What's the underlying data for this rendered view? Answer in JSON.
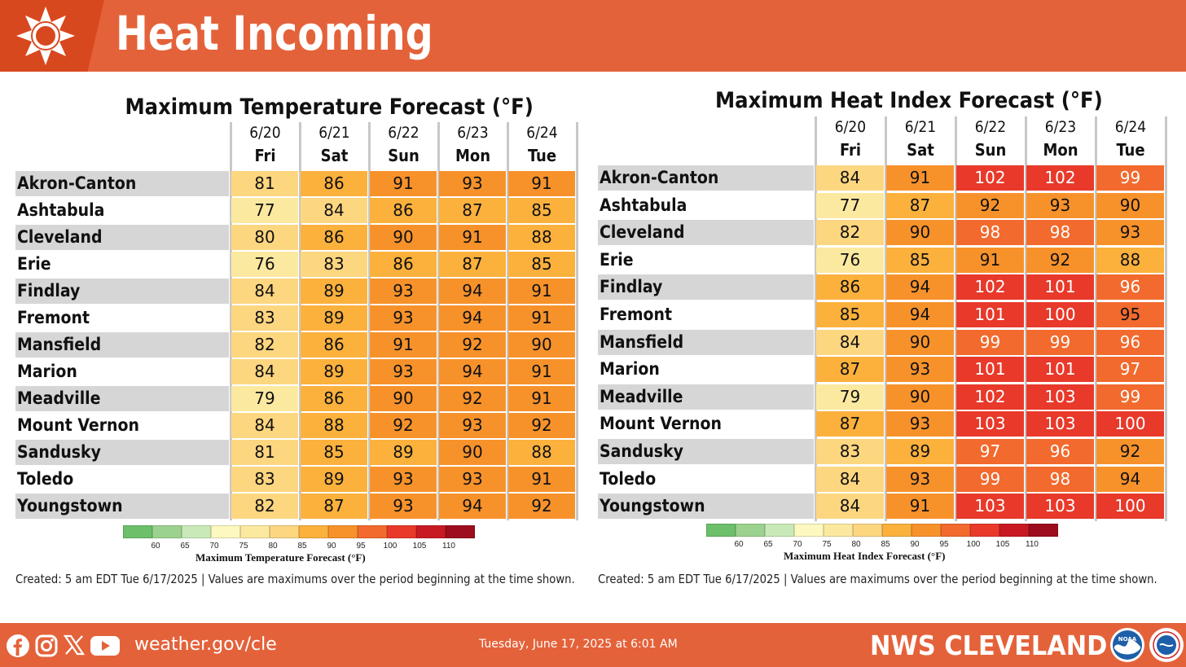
{
  "header": {
    "title": "Heat Incoming"
  },
  "temp_panel": {
    "title": "Maximum Temperature Forecast (°F)",
    "days": [
      {
        "date": "6/20",
        "day": "Fri"
      },
      {
        "date": "6/21",
        "day": "Sat"
      },
      {
        "date": "6/22",
        "day": "Sun"
      },
      {
        "date": "6/23",
        "day": "Mon"
      },
      {
        "date": "6/24",
        "day": "Tue"
      }
    ],
    "rows": [
      {
        "city": "Akron-Canton",
        "values": [
          81,
          86,
          91,
          93,
          91
        ]
      },
      {
        "city": "Ashtabula",
        "values": [
          77,
          84,
          86,
          87,
          85
        ]
      },
      {
        "city": "Cleveland",
        "values": [
          80,
          86,
          90,
          91,
          88
        ]
      },
      {
        "city": "Erie",
        "values": [
          76,
          83,
          86,
          87,
          85
        ]
      },
      {
        "city": "Findlay",
        "values": [
          84,
          89,
          93,
          94,
          91
        ]
      },
      {
        "city": "Fremont",
        "values": [
          83,
          89,
          93,
          94,
          91
        ]
      },
      {
        "city": "Mansfield",
        "values": [
          82,
          86,
          91,
          92,
          90
        ]
      },
      {
        "city": "Marion",
        "values": [
          84,
          89,
          93,
          94,
          91
        ]
      },
      {
        "city": "Meadville",
        "values": [
          79,
          86,
          90,
          92,
          91
        ]
      },
      {
        "city": "Mount Vernon",
        "values": [
          84,
          88,
          92,
          93,
          92
        ]
      },
      {
        "city": "Sandusky",
        "values": [
          81,
          85,
          89,
          90,
          88
        ]
      },
      {
        "city": "Toledo",
        "values": [
          83,
          89,
          93,
          93,
          91
        ]
      },
      {
        "city": "Youngstown",
        "values": [
          82,
          87,
          93,
          94,
          92
        ]
      }
    ],
    "scale_title": "Maximum Temperature Forecast (°F)",
    "created": "Created: 5 am EDT Tue 6/17/2025  |  Values are maximums over the period beginning at the time shown."
  },
  "heat_panel": {
    "title": "Maximum Heat Index Forecast (°F)",
    "days": [
      {
        "date": "6/20",
        "day": "Fri"
      },
      {
        "date": "6/21",
        "day": "Sat"
      },
      {
        "date": "6/22",
        "day": "Sun"
      },
      {
        "date": "6/23",
        "day": "Mon"
      },
      {
        "date": "6/24",
        "day": "Tue"
      }
    ],
    "rows": [
      {
        "city": "Akron-Canton",
        "values": [
          84,
          91,
          102,
          102,
          99
        ]
      },
      {
        "city": "Ashtabula",
        "values": [
          77,
          87,
          92,
          93,
          90
        ]
      },
      {
        "city": "Cleveland",
        "values": [
          82,
          90,
          98,
          98,
          93
        ]
      },
      {
        "city": "Erie",
        "values": [
          76,
          85,
          91,
          92,
          88
        ]
      },
      {
        "city": "Findlay",
        "values": [
          86,
          94,
          102,
          101,
          96
        ]
      },
      {
        "city": "Fremont",
        "values": [
          85,
          94,
          101,
          100,
          95
        ]
      },
      {
        "city": "Mansfield",
        "values": [
          84,
          90,
          99,
          99,
          96
        ]
      },
      {
        "city": "Marion",
        "values": [
          87,
          93,
          101,
          101,
          97
        ]
      },
      {
        "city": "Meadville",
        "values": [
          79,
          90,
          102,
          103,
          99
        ]
      },
      {
        "city": "Mount Vernon",
        "values": [
          87,
          93,
          103,
          103,
          100
        ]
      },
      {
        "city": "Sandusky",
        "values": [
          83,
          89,
          97,
          96,
          92
        ]
      },
      {
        "city": "Toledo",
        "values": [
          84,
          93,
          99,
          98,
          94
        ]
      },
      {
        "city": "Youngstown",
        "values": [
          84,
          91,
          103,
          103,
          100
        ]
      }
    ],
    "scale_title": "Maximum Heat Index Forecast (°F)",
    "created": "Created: 5 am EDT Tue 6/17/2025  |  Values are maximums over the period beginning at the time shown."
  },
  "scale": {
    "ticks": [
      "60",
      "65",
      "70",
      "75",
      "80",
      "85",
      "90",
      "95",
      "100",
      "105",
      "110"
    ],
    "colors": [
      "#6dbf6a",
      "#9cd28f",
      "#c9eab8",
      "#fdf8bf",
      "#fce9a0",
      "#fdd680",
      "#fbb13c",
      "#f7922b",
      "#f26a2d",
      "#e8392a",
      "#c71a23",
      "#9d0d1e"
    ]
  },
  "footer": {
    "url": "weather.gov/cle",
    "timestamp": "Tuesday, June 17, 2025 at 6:01 AM",
    "brand": "NWS CLEVELAND",
    "icons": [
      "facebook-icon",
      "instagram-icon",
      "x-icon",
      "youtube-icon",
      "noaa-logo",
      "nws-logo"
    ]
  }
}
